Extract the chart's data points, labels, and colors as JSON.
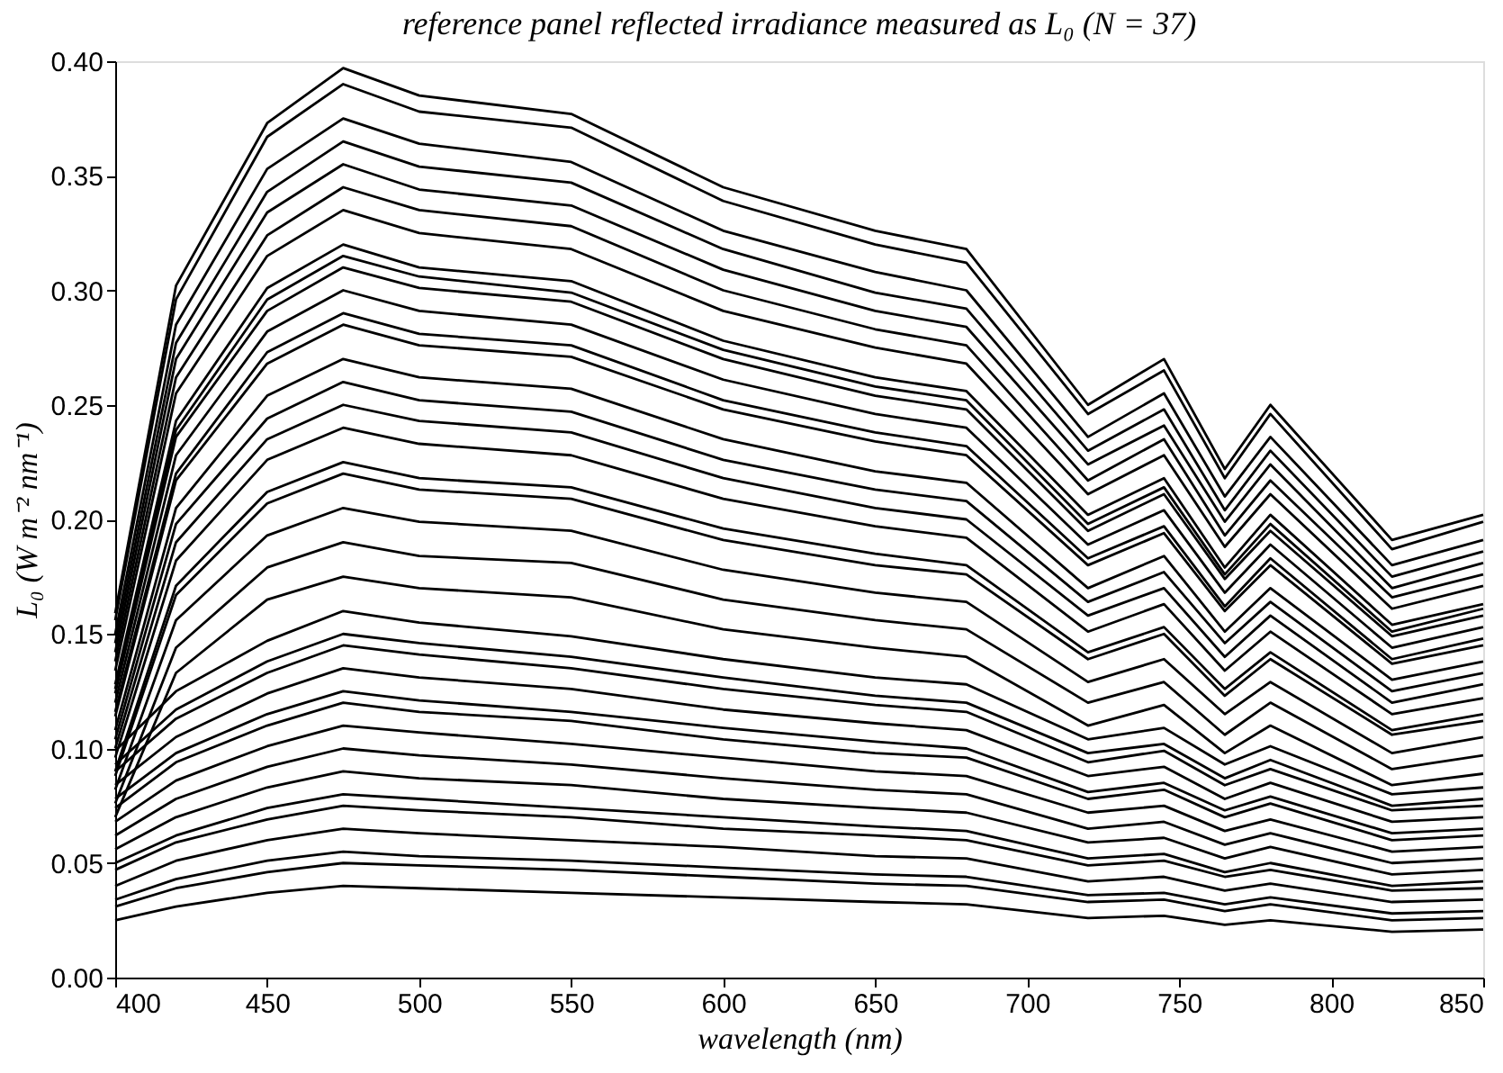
{
  "chart_data": {
    "type": "line",
    "title": "reference panel reflected irradiance measured as L₀ (N = 37)",
    "xlabel": "wavelength (nm)",
    "ylabel": "L₀ (W m⁻² nm⁻¹)",
    "x": [
      400,
      420,
      450,
      475,
      500,
      550,
      600,
      650,
      680,
      720,
      745,
      765,
      780,
      820,
      850
    ],
    "xlim": [
      400,
      850
    ],
    "xticks": [
      400,
      450,
      500,
      550,
      600,
      650,
      700,
      750,
      800,
      850
    ],
    "ylim": [
      0,
      0.4
    ],
    "yticks": [
      {
        "value": 0,
        "label": "0.00"
      },
      {
        "value": 0.05,
        "label": "0.05"
      },
      {
        "value": 0.1,
        "label": "0.10"
      },
      {
        "value": 0.15,
        "label": "0.15"
      },
      {
        "value": 0.2,
        "label": "0.20"
      },
      {
        "value": 0.25,
        "label": "0.25"
      },
      {
        "value": 0.3,
        "label": "0.30"
      },
      {
        "value": 0.35,
        "label": "0.35"
      },
      {
        "value": 0.4,
        "label": "0.40"
      }
    ],
    "grid": false,
    "legend": false,
    "marker": "none",
    "line_style": "solid",
    "series": [
      {
        "color": "#000000",
        "values": [
          0.159,
          0.302,
          0.373,
          0.397,
          0.385,
          0.377,
          0.345,
          0.326,
          0.318,
          0.25,
          0.27,
          0.222,
          0.25,
          0.191,
          0.202
        ]
      },
      {
        "color": "#000000",
        "values": [
          0.156,
          0.296,
          0.367,
          0.39,
          0.378,
          0.371,
          0.339,
          0.32,
          0.312,
          0.246,
          0.265,
          0.218,
          0.246,
          0.187,
          0.199
        ]
      },
      {
        "color": "#000000",
        "values": [
          0.15,
          0.285,
          0.353,
          0.375,
          0.364,
          0.356,
          0.326,
          0.308,
          0.3,
          0.236,
          0.255,
          0.21,
          0.236,
          0.18,
          0.191
        ]
      },
      {
        "color": "#000000",
        "values": [
          0.146,
          0.277,
          0.343,
          0.365,
          0.354,
          0.347,
          0.318,
          0.299,
          0.292,
          0.23,
          0.248,
          0.204,
          0.23,
          0.175,
          0.186
        ]
      },
      {
        "color": "#000000",
        "values": [
          0.142,
          0.27,
          0.334,
          0.355,
          0.344,
          0.337,
          0.309,
          0.291,
          0.284,
          0.224,
          0.241,
          0.199,
          0.224,
          0.17,
          0.181
        ]
      },
      {
        "color": "#000000",
        "values": [
          0.138,
          0.262,
          0.324,
          0.345,
          0.335,
          0.328,
          0.3,
          0.283,
          0.276,
          0.217,
          0.235,
          0.193,
          0.217,
          0.166,
          0.176
        ]
      },
      {
        "color": "#000000",
        "values": [
          0.134,
          0.255,
          0.315,
          0.335,
          0.325,
          0.318,
          0.291,
          0.275,
          0.268,
          0.211,
          0.228,
          0.188,
          0.211,
          0.161,
          0.171
        ]
      },
      {
        "color": "#000000",
        "values": [
          0.128,
          0.243,
          0.301,
          0.32,
          0.31,
          0.304,
          0.278,
          0.262,
          0.256,
          0.202,
          0.218,
          0.179,
          0.202,
          0.154,
          0.163
        ]
      },
      {
        "color": "#000000",
        "values": [
          0.126,
          0.239,
          0.296,
          0.315,
          0.306,
          0.299,
          0.274,
          0.258,
          0.252,
          0.198,
          0.214,
          0.176,
          0.198,
          0.151,
          0.161
        ]
      },
      {
        "color": "#000000",
        "values": [
          0.124,
          0.236,
          0.291,
          0.31,
          0.301,
          0.295,
          0.27,
          0.254,
          0.248,
          0.195,
          0.211,
          0.174,
          0.195,
          0.149,
          0.158
        ]
      },
      {
        "color": "#000000",
        "values": [
          0.12,
          0.228,
          0.282,
          0.3,
          0.291,
          0.285,
          0.261,
          0.246,
          0.24,
          0.189,
          0.204,
          0.168,
          0.189,
          0.144,
          0.153
        ]
      },
      {
        "color": "#000000",
        "values": [
          0.116,
          0.22,
          0.273,
          0.29,
          0.281,
          0.276,
          0.252,
          0.238,
          0.232,
          0.183,
          0.197,
          0.162,
          0.183,
          0.139,
          0.148
        ]
      },
      {
        "color": "#000000",
        "values": [
          0.114,
          0.217,
          0.268,
          0.285,
          0.276,
          0.271,
          0.248,
          0.234,
          0.228,
          0.18,
          0.194,
          0.16,
          0.18,
          0.137,
          0.145
        ]
      },
      {
        "color": "#000000",
        "values": [
          0.108,
          0.205,
          0.254,
          0.27,
          0.262,
          0.257,
          0.235,
          0.221,
          0.216,
          0.17,
          0.184,
          0.151,
          0.17,
          0.13,
          0.138
        ]
      },
      {
        "color": "#000000",
        "values": [
          0.104,
          0.198,
          0.244,
          0.26,
          0.252,
          0.247,
          0.226,
          0.213,
          0.208,
          0.164,
          0.177,
          0.146,
          0.164,
          0.125,
          0.133
        ]
      },
      {
        "color": "#000000",
        "values": [
          0.1,
          0.19,
          0.235,
          0.25,
          0.243,
          0.238,
          0.218,
          0.205,
          0.2,
          0.158,
          0.17,
          0.14,
          0.158,
          0.12,
          0.128
        ]
      },
      {
        "color": "#000000",
        "values": [
          0.096,
          0.182,
          0.226,
          0.24,
          0.233,
          0.228,
          0.209,
          0.197,
          0.192,
          0.151,
          0.163,
          0.134,
          0.151,
          0.115,
          0.122
        ]
      },
      {
        "color": "#000000",
        "values": [
          0.09,
          0.171,
          0.212,
          0.225,
          0.218,
          0.214,
          0.196,
          0.185,
          0.18,
          0.142,
          0.153,
          0.126,
          0.142,
          0.108,
          0.115
        ]
      },
      {
        "color": "#000000",
        "values": [
          0.088,
          0.167,
          0.207,
          0.22,
          0.213,
          0.209,
          0.191,
          0.18,
          0.176,
          0.139,
          0.15,
          0.123,
          0.139,
          0.106,
          0.112
        ]
      },
      {
        "color": "#000000",
        "values": [
          0.082,
          0.156,
          0.193,
          0.205,
          0.199,
          0.195,
          0.178,
          0.168,
          0.164,
          0.129,
          0.139,
          0.115,
          0.129,
          0.098,
          0.105
        ]
      },
      {
        "color": "#000000",
        "values": [
          0.076,
          0.144,
          0.179,
          0.19,
          0.184,
          0.181,
          0.165,
          0.156,
          0.152,
          0.12,
          0.129,
          0.106,
          0.12,
          0.091,
          0.097
        ]
      },
      {
        "color": "#000000",
        "values": [
          0.07,
          0.133,
          0.165,
          0.175,
          0.17,
          0.166,
          0.152,
          0.144,
          0.14,
          0.11,
          0.119,
          0.098,
          0.11,
          0.084,
          0.089
        ]
      },
      {
        "color": "#000000",
        "values": [
          0.099,
          0.125,
          0.147,
          0.16,
          0.155,
          0.149,
          0.139,
          0.131,
          0.128,
          0.104,
          0.109,
          0.093,
          0.101,
          0.08,
          0.083
        ]
      },
      {
        "color": "#000000",
        "values": [
          0.093,
          0.117,
          0.138,
          0.15,
          0.146,
          0.14,
          0.131,
          0.123,
          0.12,
          0.098,
          0.102,
          0.087,
          0.095,
          0.075,
          0.078
        ]
      },
      {
        "color": "#000000",
        "values": [
          0.09,
          0.113,
          0.133,
          0.145,
          0.141,
          0.135,
          0.126,
          0.119,
          0.116,
          0.094,
          0.099,
          0.084,
          0.091,
          0.073,
          0.075
        ]
      },
      {
        "color": "#000000",
        "values": [
          0.084,
          0.105,
          0.124,
          0.135,
          0.131,
          0.126,
          0.117,
          0.111,
          0.108,
          0.088,
          0.092,
          0.078,
          0.085,
          0.068,
          0.07
        ]
      },
      {
        "color": "#000000",
        "values": [
          0.078,
          0.098,
          0.115,
          0.125,
          0.121,
          0.116,
          0.109,
          0.103,
          0.1,
          0.081,
          0.085,
          0.073,
          0.079,
          0.063,
          0.065
        ]
      },
      {
        "color": "#000000",
        "values": [
          0.074,
          0.094,
          0.11,
          0.12,
          0.116,
          0.112,
          0.104,
          0.098,
          0.096,
          0.078,
          0.082,
          0.07,
          0.076,
          0.06,
          0.062
        ]
      },
      {
        "color": "#000000",
        "values": [
          0.068,
          0.086,
          0.101,
          0.11,
          0.107,
          0.102,
          0.096,
          0.09,
          0.088,
          0.072,
          0.075,
          0.064,
          0.069,
          0.055,
          0.057
        ]
      },
      {
        "color": "#000000",
        "values": [
          0.062,
          0.078,
          0.092,
          0.1,
          0.097,
          0.093,
          0.087,
          0.082,
          0.08,
          0.065,
          0.068,
          0.058,
          0.063,
          0.05,
          0.052
        ]
      },
      {
        "color": "#000000",
        "values": [
          0.056,
          0.07,
          0.083,
          0.09,
          0.087,
          0.084,
          0.078,
          0.074,
          0.072,
          0.059,
          0.061,
          0.052,
          0.057,
          0.045,
          0.047
        ]
      },
      {
        "color": "#000000",
        "values": [
          0.05,
          0.062,
          0.074,
          0.08,
          0.078,
          0.074,
          0.07,
          0.066,
          0.064,
          0.052,
          0.054,
          0.046,
          0.05,
          0.04,
          0.042
        ]
      },
      {
        "color": "#000000",
        "values": [
          0.047,
          0.059,
          0.069,
          0.075,
          0.073,
          0.07,
          0.065,
          0.062,
          0.06,
          0.049,
          0.051,
          0.044,
          0.047,
          0.038,
          0.039
        ]
      },
      {
        "color": "#000000",
        "values": [
          0.04,
          0.051,
          0.06,
          0.065,
          0.063,
          0.06,
          0.057,
          0.053,
          0.052,
          0.042,
          0.044,
          0.038,
          0.041,
          0.033,
          0.034
        ]
      },
      {
        "color": "#000000",
        "values": [
          0.034,
          0.043,
          0.051,
          0.055,
          0.053,
          0.051,
          0.048,
          0.045,
          0.044,
          0.036,
          0.037,
          0.032,
          0.035,
          0.028,
          0.029
        ]
      },
      {
        "color": "#000000",
        "values": [
          0.031,
          0.039,
          0.046,
          0.05,
          0.049,
          0.047,
          0.044,
          0.041,
          0.04,
          0.033,
          0.034,
          0.029,
          0.032,
          0.025,
          0.026
        ]
      },
      {
        "color": "#000000",
        "values": [
          0.025,
          0.031,
          0.037,
          0.04,
          0.039,
          0.037,
          0.035,
          0.033,
          0.032,
          0.026,
          0.027,
          0.023,
          0.025,
          0.02,
          0.021
        ]
      }
    ]
  }
}
